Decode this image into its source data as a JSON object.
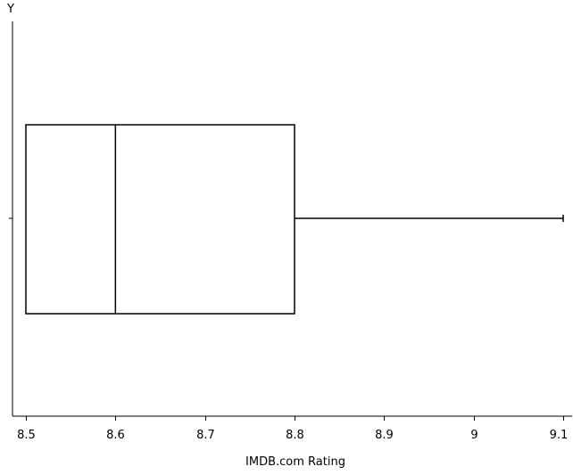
{
  "chart_data": {
    "type": "boxplot",
    "title": "",
    "xlabel": "IMDB.com Rating",
    "ylabel": "Y",
    "xlim": [
      8.5,
      9.1
    ],
    "x_ticks": [
      8.5,
      8.6,
      8.7,
      8.8,
      8.9,
      9.0,
      9.1
    ],
    "x_tick_labels": [
      "8.5",
      "8.6",
      "8.7",
      "8.8",
      "8.9",
      "9",
      "9.1"
    ],
    "grid": false,
    "series": [
      {
        "min": 8.5,
        "q1": 8.5,
        "median": 8.6,
        "q3": 8.8,
        "max": 9.1
      }
    ]
  }
}
